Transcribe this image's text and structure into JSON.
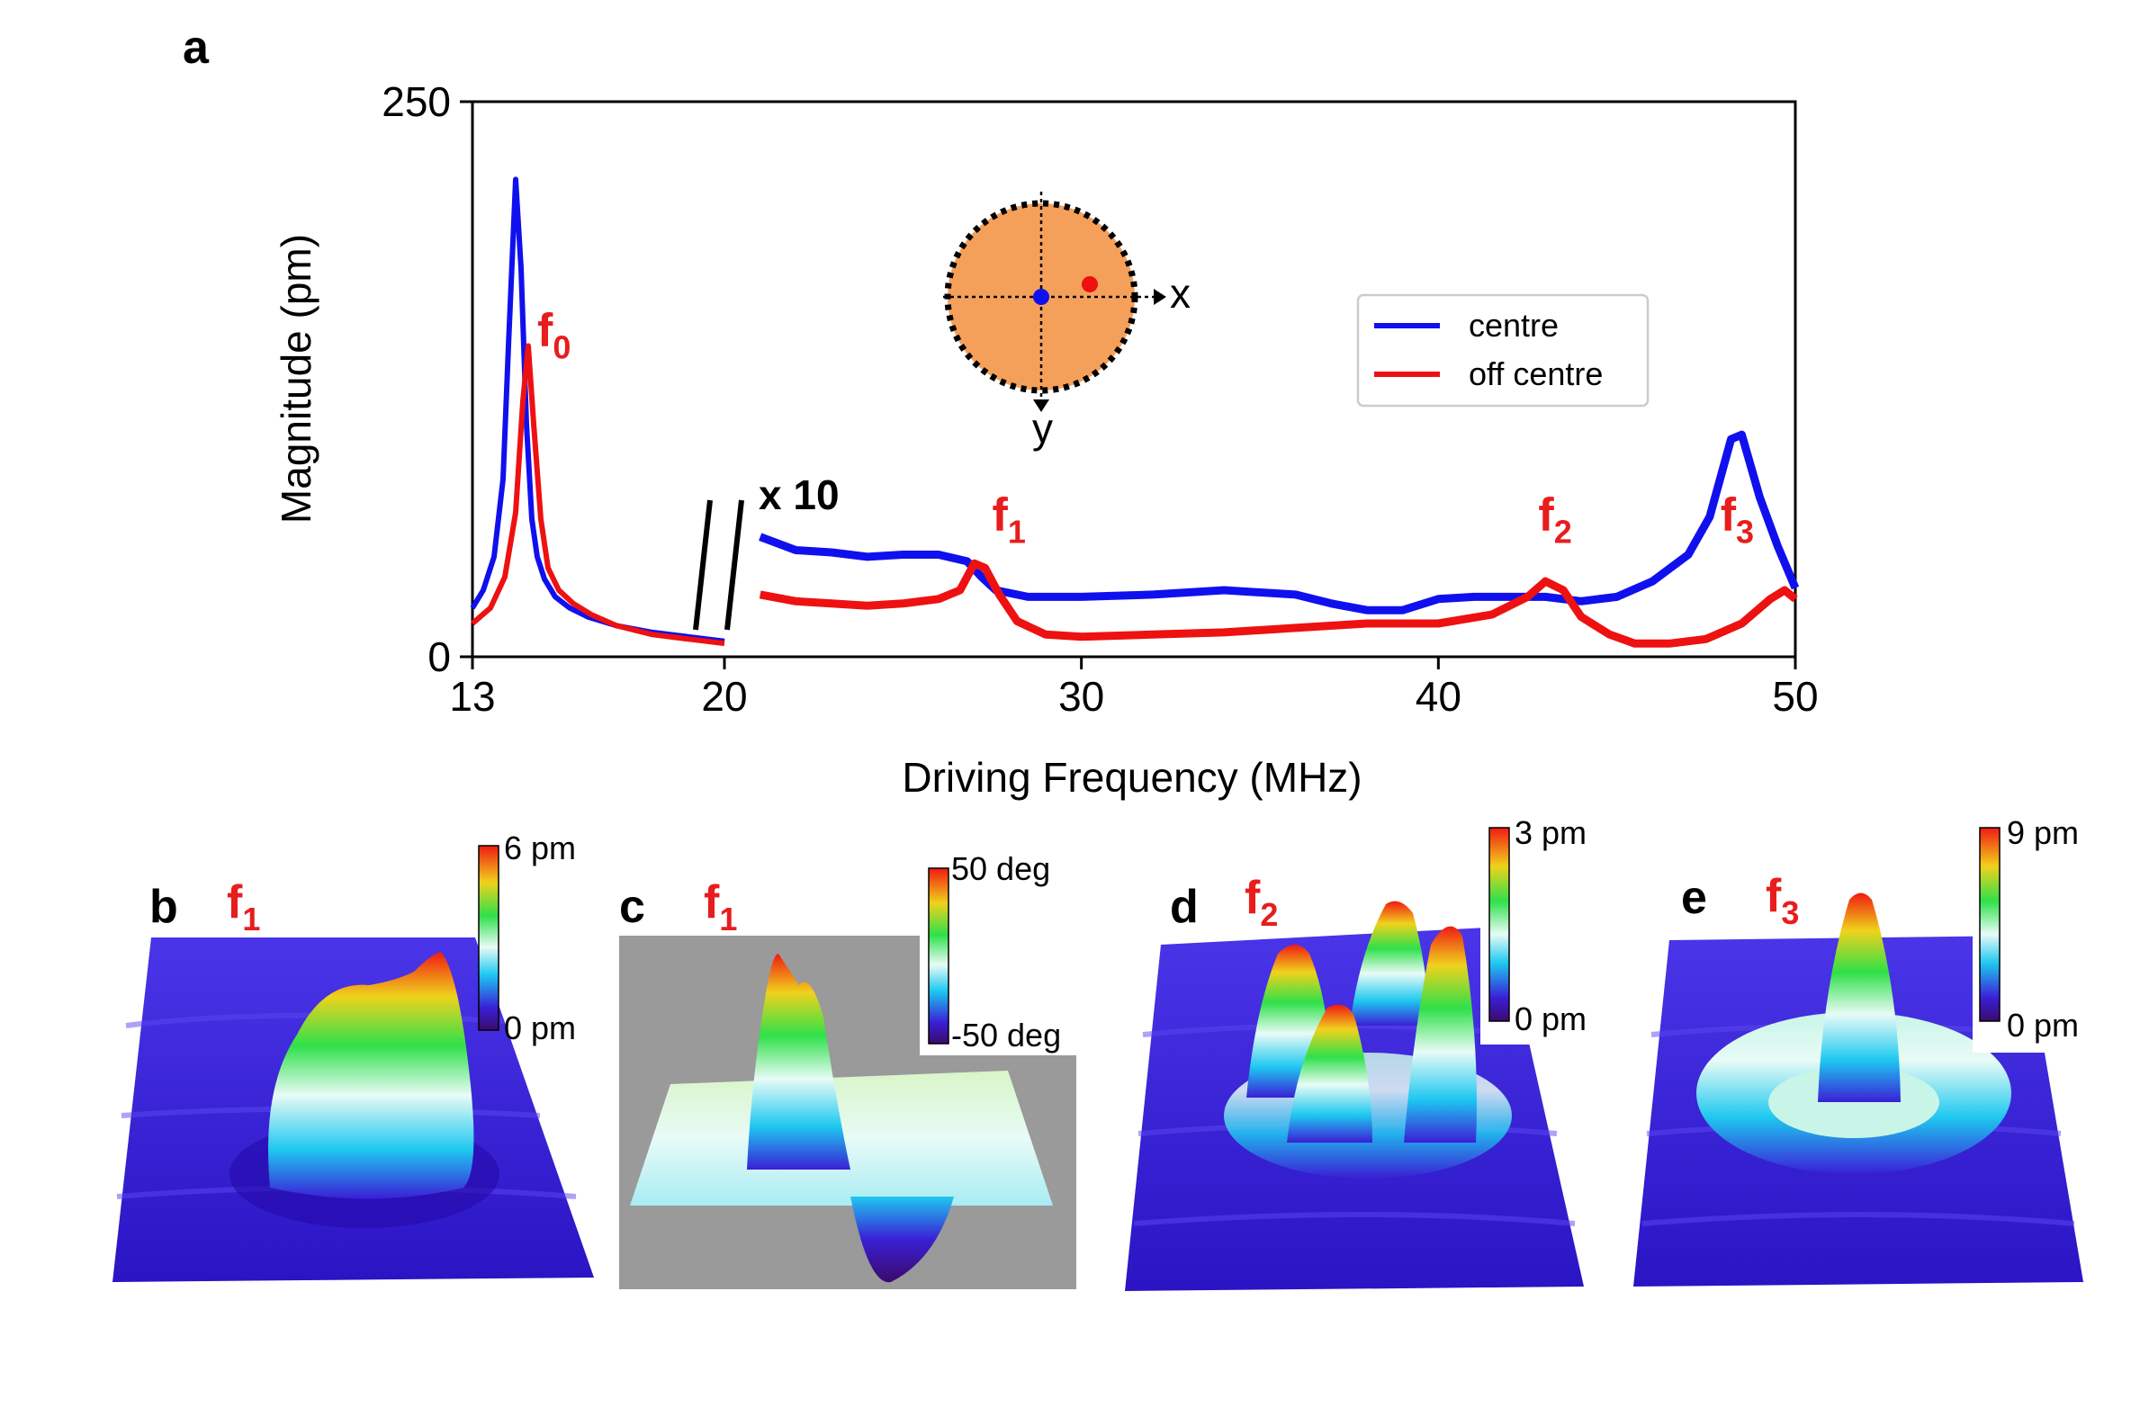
{
  "colors": {
    "centre": "#1010ee",
    "off_centre": "#ee1111",
    "annotation": "#e81d1d",
    "disk": "#f5a05a",
    "surface_low": "#3a1fd6",
    "phase_background": "#9a9a9a"
  },
  "chart_data": [
    {
      "panel": "a",
      "type": "line",
      "xlabel": "Driving Frequency (MHz)",
      "ylabel": "Magnitude (pm)",
      "ylim": [
        0,
        250
      ],
      "y_tick_labels": [
        "0",
        "250"
      ],
      "x_tick_labels": [
        "13",
        "20",
        "30",
        "40",
        "50"
      ],
      "x_axis_note": "broken axis: 13–20 MHz shown compressed, 20–50 MHz linear; data right of the break is magnified",
      "magnification_label": "x 10",
      "legend": [
        "centre",
        "off centre"
      ],
      "legend_position": "upper right",
      "inset": {
        "x_label": "x",
        "y_label": "y",
        "description": "circular drum with centre (blue) and off-centre (red) measurement points"
      },
      "series": [
        {
          "name": "centre",
          "segment_low": {
            "x": [
              13.0,
              13.3,
              13.6,
              13.85,
              14.0,
              14.2,
              14.35,
              14.5,
              14.65,
              14.8,
              15.0,
              15.3,
              15.7,
              16.2,
              17.0,
              18.0,
              19.0,
              20.0
            ],
            "y": [
              22,
              30,
              45,
              80,
              140,
              215,
              175,
              105,
              62,
              45,
              35,
              27,
              22,
              18,
              14,
              11,
              9,
              7
            ]
          },
          "segment_high": {
            "x": [
              21.0,
              22.0,
              23.0,
              24.0,
              25.0,
              26.0,
              26.8,
              27.2,
              27.6,
              28.5,
              30.0,
              32.0,
              34.0,
              36.0,
              37.0,
              38.0,
              39.0,
              40.0,
              41.0,
              42.0,
              43.0,
              44.0,
              45.0,
              46.0,
              47.0,
              47.6,
              48.2,
              48.5,
              49.0,
              49.5,
              50.0
            ],
            "y": [
              54,
              48,
              47,
              45,
              46,
              46,
              43,
              36,
              30,
              27,
              27,
              28,
              30,
              28,
              24,
              21,
              21,
              26,
              27,
              27,
              27,
              25,
              27,
              34,
              46,
              63,
              98,
              100,
              72,
              50,
              31
            ]
          }
        },
        {
          "name": "off centre",
          "segment_low": {
            "x": [
              13.0,
              13.5,
              13.9,
              14.2,
              14.4,
              14.55,
              14.7,
              14.9,
              15.1,
              15.4,
              15.8,
              16.3,
              17.0,
              18.0,
              19.0,
              20.0
            ],
            "y": [
              15,
              22,
              36,
              65,
              115,
              140,
              105,
              62,
              40,
              30,
              24,
              19,
              14,
              10,
              8,
              6
            ]
          },
          "segment_high": {
            "x": [
              21.0,
              22.0,
              23.0,
              24.0,
              25.0,
              26.0,
              26.6,
              27.0,
              27.3,
              27.7,
              28.2,
              29.0,
              30.0,
              32.0,
              34.0,
              36.0,
              38.0,
              40.0,
              41.5,
              42.5,
              43.0,
              43.5,
              44.0,
              44.8,
              45.5,
              46.5,
              47.5,
              48.5,
              49.3,
              49.7,
              50.0
            ],
            "y": [
              28,
              25,
              24,
              23,
              24,
              26,
              30,
              42,
              40,
              28,
              16,
              10,
              9,
              10,
              11,
              13,
              15,
              15,
              19,
              27,
              34,
              30,
              18,
              10,
              6,
              6,
              8,
              15,
              26,
              30,
              26
            ]
          }
        }
      ],
      "annotations": [
        {
          "base": "f",
          "sub": "0",
          "x": 14.8,
          "y": 140
        },
        {
          "base": "f",
          "sub": "1",
          "x": 27.5,
          "y": 57
        },
        {
          "base": "f",
          "sub": "2",
          "x": 42.8,
          "y": 57
        },
        {
          "base": "f",
          "sub": "3",
          "x": 47.9,
          "y": 57
        }
      ]
    },
    {
      "panel": "b",
      "type": "heatmap",
      "mode": "f",
      "mode_sub": "1",
      "description": "3D surface of vibration magnitude",
      "colorbar": {
        "max_label": "6 pm",
        "min_label": "0 pm",
        "colormap": "rainbow"
      }
    },
    {
      "panel": "c",
      "type": "heatmap",
      "mode": "f",
      "mode_sub": "1",
      "description": "3D surface of vibration phase",
      "colorbar": {
        "max_label": "50 deg",
        "min_label": "-50 deg",
        "colormap": "rainbow"
      }
    },
    {
      "panel": "d",
      "type": "heatmap",
      "mode": "f",
      "mode_sub": "2",
      "description": "3D surface of vibration magnitude",
      "colorbar": {
        "max_label": "3 pm",
        "min_label": "0 pm",
        "colormap": "rainbow"
      }
    },
    {
      "panel": "e",
      "type": "heatmap",
      "mode": "f",
      "mode_sub": "3",
      "description": "3D surface of vibration magnitude",
      "colorbar": {
        "max_label": "9 pm",
        "min_label": "0 pm",
        "colormap": "rainbow"
      }
    }
  ]
}
